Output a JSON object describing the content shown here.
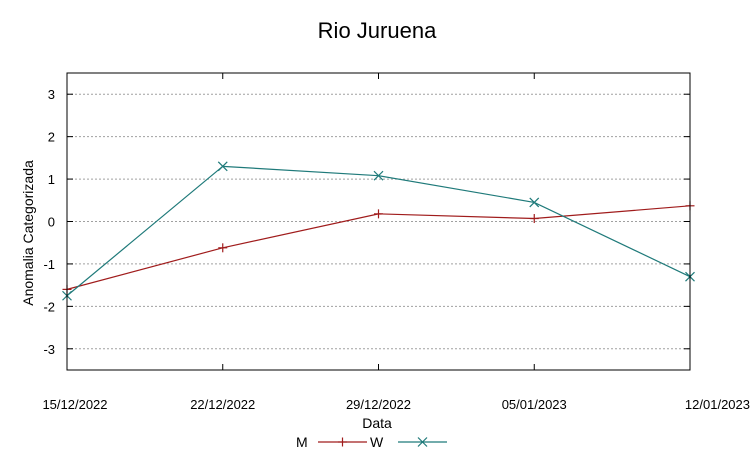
{
  "chart_data": {
    "type": "line",
    "title": "Rio Juruena",
    "xlabel": "Data",
    "ylabel": "Anomalia Categorizada",
    "categories": [
      "15/12/2022",
      "22/12/2022",
      "29/12/2022",
      "05/01/2023",
      "12/01/2023"
    ],
    "y_ticks": [
      "3",
      "2",
      "1",
      "0",
      "-1",
      "-2",
      "-3"
    ],
    "ylim": [
      -3.5,
      3.5
    ],
    "grid": true,
    "legend_position": "bottom-center",
    "series": [
      {
        "name": "M",
        "color": "#a01c1c",
        "marker": "plus",
        "values": [
          -1.6,
          -0.62,
          0.18,
          0.07,
          0.37
        ]
      },
      {
        "name": "W",
        "color": "#1f7a7a",
        "marker": "x",
        "values": [
          -1.75,
          1.3,
          1.08,
          0.45,
          -1.3
        ]
      }
    ]
  }
}
